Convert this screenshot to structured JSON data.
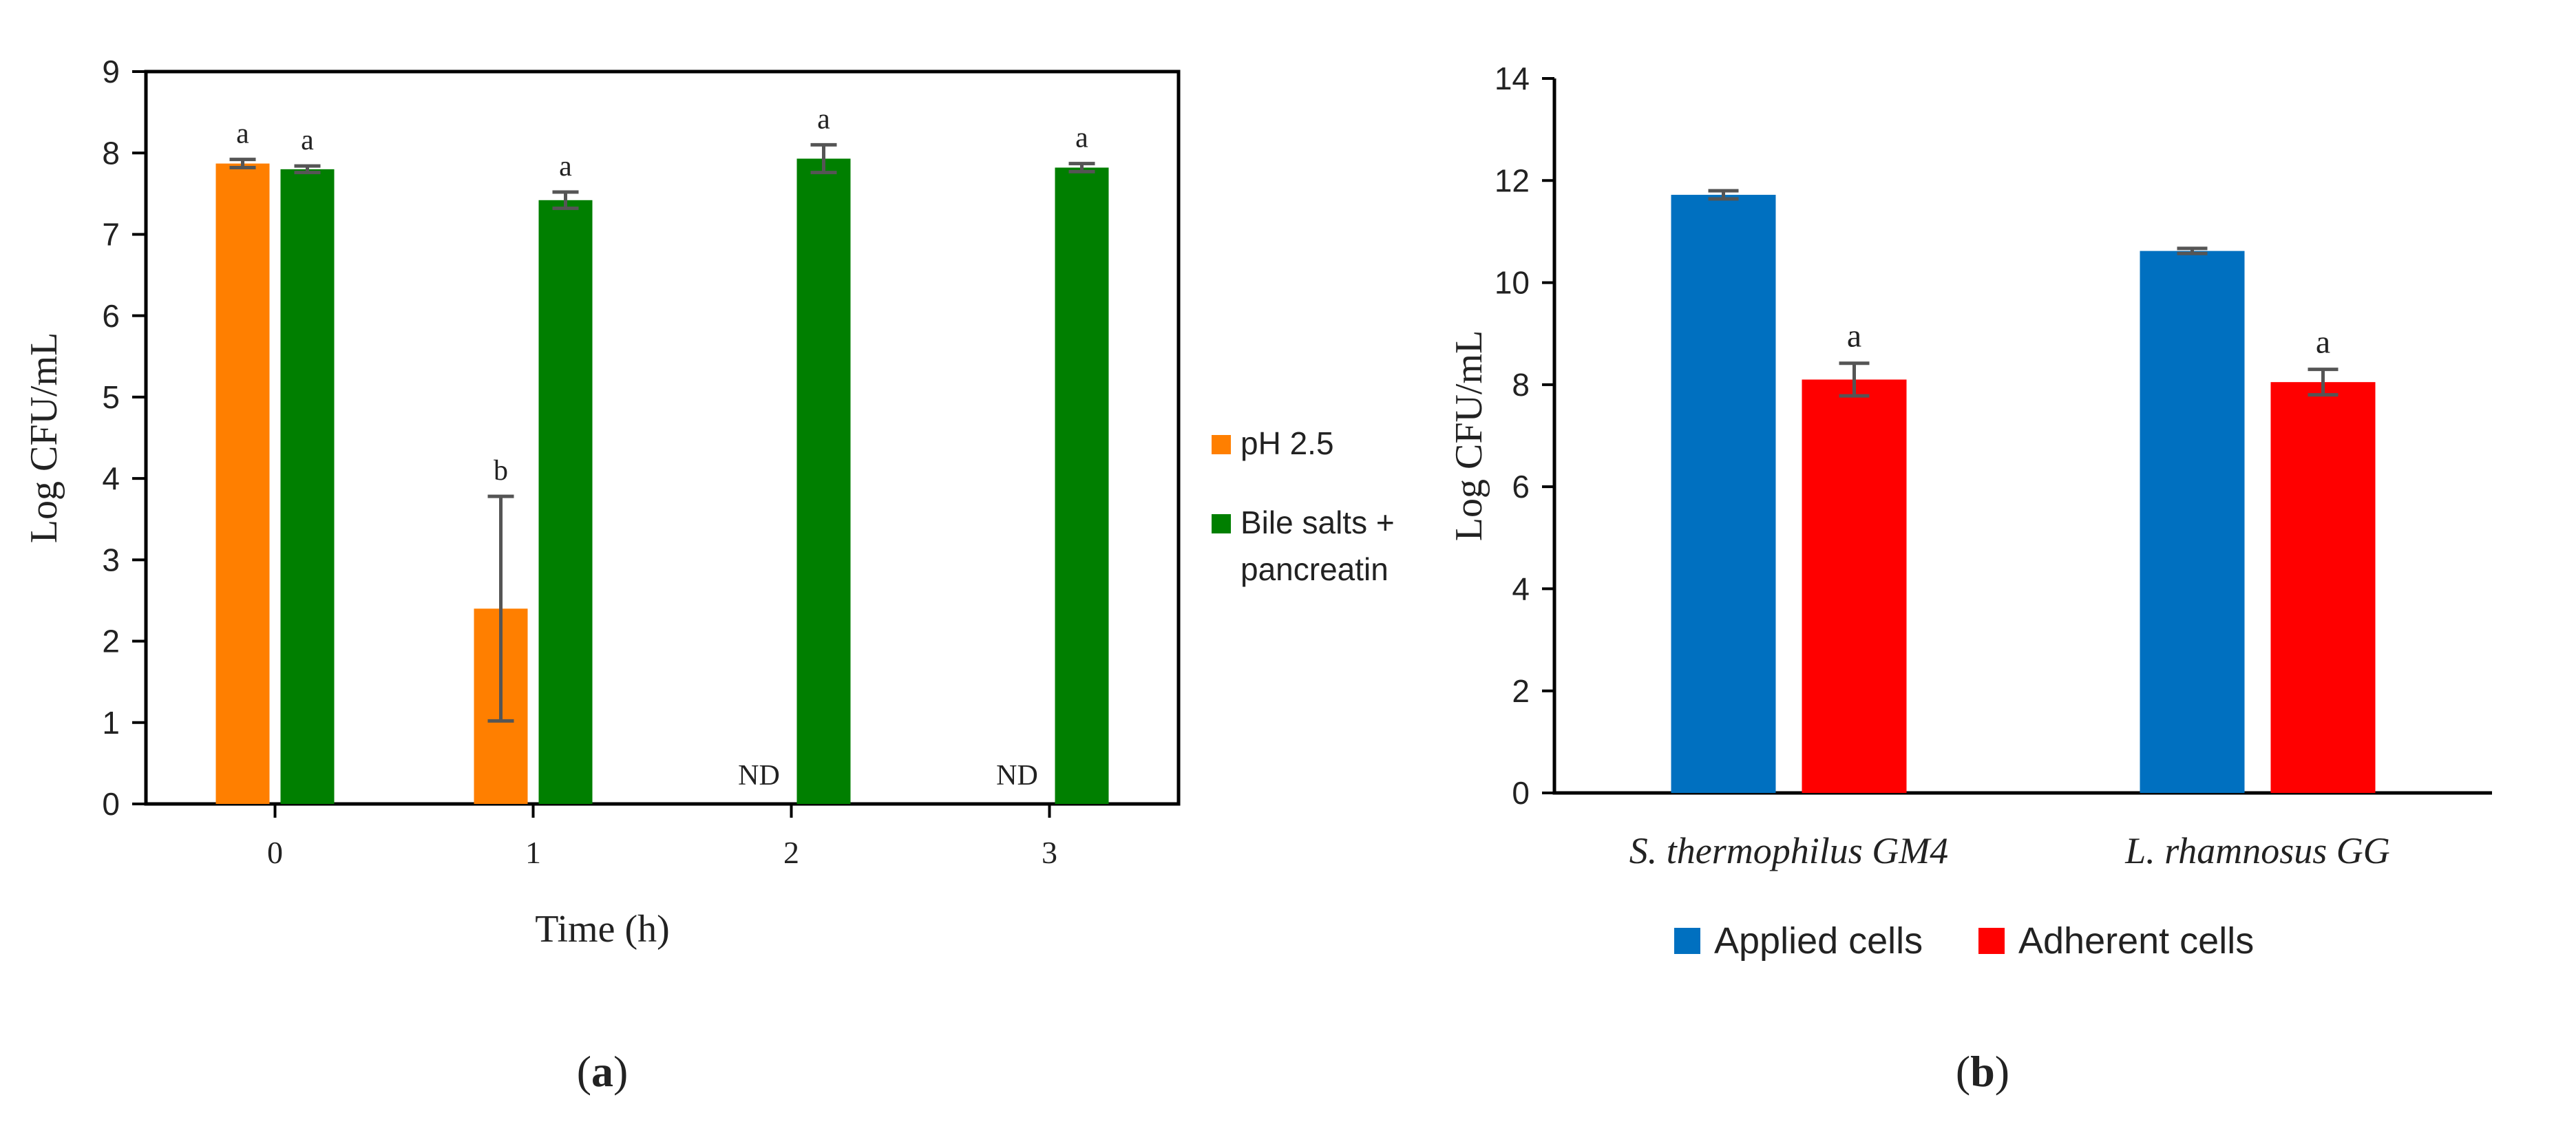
{
  "chart_data": [
    {
      "type": "bar",
      "panel_label": "a",
      "title": "",
      "xlabel": "Time (h)",
      "ylabel": "Log CFU/mL",
      "ylim": [
        0,
        9
      ],
      "yticks": [
        "0",
        "1",
        "2",
        "3",
        "4",
        "5",
        "6",
        "7",
        "8",
        "9"
      ],
      "categories": [
        "0",
        "1",
        "2",
        "3"
      ],
      "series": [
        {
          "name": "pH 2.5",
          "color": "#FF7F00",
          "values": [
            7.87,
            2.4,
            null,
            null
          ],
          "errors": [
            0.05,
            1.38,
            null,
            null
          ],
          "labels": [
            "a",
            "b",
            "ND",
            "ND"
          ]
        },
        {
          "name": "Bile salts + pancreatin",
          "legend_lines": [
            "Bile salts +",
            "pancreatin"
          ],
          "color": "#007F00",
          "values": [
            7.8,
            7.42,
            7.93,
            7.82
          ],
          "errors": [
            0.04,
            0.1,
            0.17,
            0.05
          ],
          "labels": [
            "a",
            "a",
            "a",
            "a"
          ]
        }
      ],
      "legend": "right",
      "grid": false
    },
    {
      "type": "bar",
      "panel_label": "b",
      "title": "",
      "xlabel": "",
      "ylabel": "Log CFU/mL",
      "ylim": [
        0,
        14
      ],
      "yticks": [
        "0",
        "2",
        "4",
        "6",
        "8",
        "10",
        "12",
        "14"
      ],
      "categories": [
        "S. thermophilus GM4",
        "L. rhamnosus GG"
      ],
      "series": [
        {
          "name": "Applied cells",
          "color": "#0070C0",
          "values": [
            11.72,
            10.62
          ],
          "errors": [
            0.08,
            0.05
          ],
          "labels": [
            "",
            ""
          ]
        },
        {
          "name": "Adherent cells",
          "color": "#FF0000",
          "values": [
            8.1,
            8.05
          ],
          "errors": [
            0.32,
            0.25
          ],
          "labels": [
            "a",
            "a"
          ]
        }
      ],
      "legend": "bottom",
      "grid": false
    }
  ]
}
